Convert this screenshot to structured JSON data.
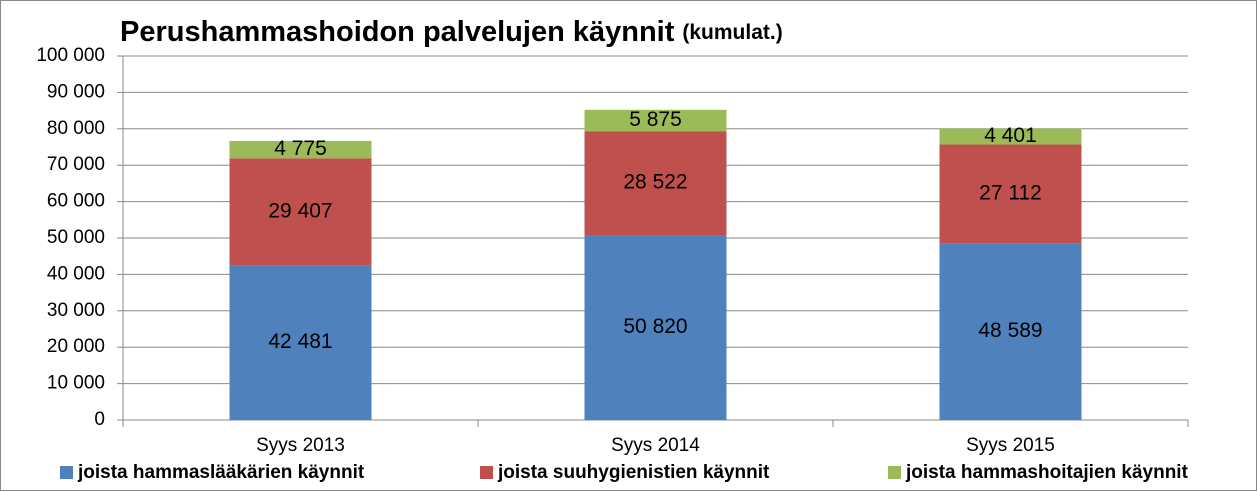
{
  "chart_data": {
    "type": "stacked_bar",
    "title": "Perushammashoidon palvelujen käynnit",
    "title_note": "(kumulat.)",
    "categories": [
      "Syys 2013",
      "Syys 2014",
      "Syys 2015"
    ],
    "series": [
      {
        "name": "joista hammaslääkärien käynnit",
        "color": "#4f81bd",
        "values": [
          42481,
          50820,
          48589
        ],
        "value_labels": [
          "42 481",
          "50 820",
          "48 589"
        ]
      },
      {
        "name": "joista suuhygienistien käynnit",
        "color": "#c0504d",
        "values": [
          29407,
          28522,
          27112
        ],
        "value_labels": [
          "29 407",
          "28 522",
          "27 112"
        ]
      },
      {
        "name": "joista hammashoitajien käynnit",
        "color": "#9bbb59",
        "values": [
          4775,
          5875,
          4401
        ],
        "value_labels": [
          "4 775",
          "5 875",
          "4 401"
        ]
      }
    ],
    "ylim": [
      0,
      100000
    ],
    "yticks": [
      0,
      {
        "value": 10000,
        "label": "10 000"
      },
      {
        "value": 20000,
        "label": "20 000"
      },
      {
        "value": 30000,
        "label": "30 000"
      },
      {
        "value": 40000,
        "label": "40 000"
      },
      {
        "value": 50000,
        "label": "50 000"
      },
      {
        "value": 60000,
        "label": "60 000"
      },
      {
        "value": 70000,
        "label": "70 000"
      },
      {
        "value": 80000,
        "label": "80 000"
      },
      {
        "value": 90000,
        "label": "90 000"
      },
      {
        "value": 100000,
        "label": "100 000"
      }
    ],
    "grid": true,
    "legend": "bottom"
  }
}
